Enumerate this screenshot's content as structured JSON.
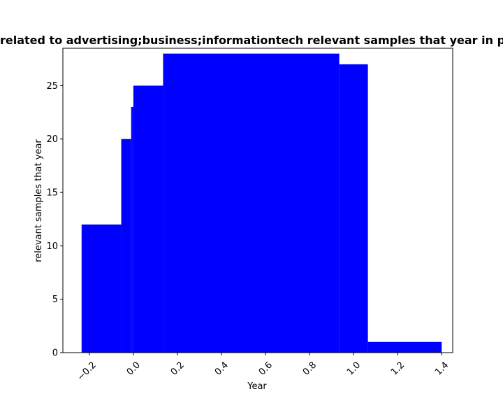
{
  "chart_data": {
    "type": "bar",
    "title": "related to advertising;business;informationtech relevant samples that year in p",
    "xlabel": "Year",
    "ylabel": "relevant samples that year",
    "xlim": [
      -0.32,
      1.45
    ],
    "ylim": [
      0,
      28.5
    ],
    "bars": [
      {
        "left": -0.235,
        "right": -0.055,
        "value": 12
      },
      {
        "left": -0.055,
        "right": -0.01,
        "value": 20
      },
      {
        "left": -0.01,
        "right": 0.0,
        "value": 23
      },
      {
        "left": 0.0,
        "right": 0.135,
        "value": 25
      },
      {
        "left": 0.135,
        "right": 0.935,
        "value": 28
      },
      {
        "left": 0.935,
        "right": 1.065,
        "value": 27
      },
      {
        "left": 1.065,
        "right": 1.4,
        "value": 1
      }
    ],
    "color": "#0000ff",
    "x_ticks": [
      {
        "value": -0.2,
        "label": "−0.2"
      },
      {
        "value": 0.0,
        "label": "0.0"
      },
      {
        "value": 0.2,
        "label": "0.2"
      },
      {
        "value": 0.4,
        "label": "0.4"
      },
      {
        "value": 0.6,
        "label": "0.6"
      },
      {
        "value": 0.8,
        "label": "0.8"
      },
      {
        "value": 1.0,
        "label": "1.0"
      },
      {
        "value": 1.2,
        "label": "1.2"
      },
      {
        "value": 1.4,
        "label": "1.4"
      }
    ],
    "y_ticks": [
      {
        "value": 0,
        "label": "0"
      },
      {
        "value": 5,
        "label": "5"
      },
      {
        "value": 10,
        "label": "10"
      },
      {
        "value": 15,
        "label": "15"
      },
      {
        "value": 20,
        "label": "20"
      },
      {
        "value": 25,
        "label": "25"
      }
    ],
    "grid": false,
    "legend": false
  }
}
